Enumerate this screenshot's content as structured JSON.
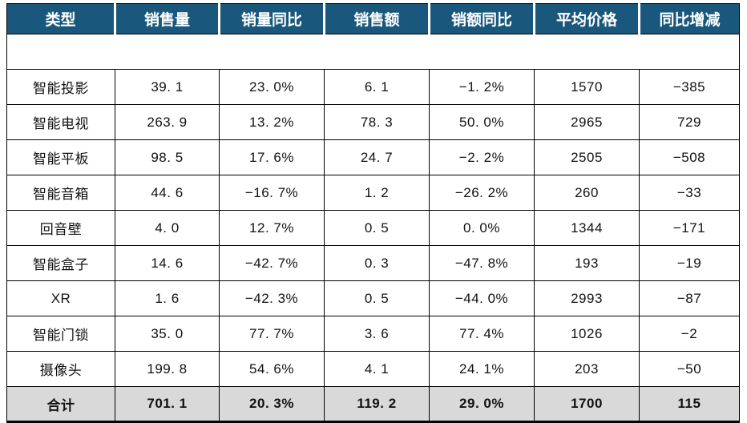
{
  "chart_data": {
    "type": "table",
    "title": "",
    "columns": [
      "类型",
      "销售量",
      "销量同比",
      "销售额",
      "销额同比",
      "平均价格",
      "同比增减"
    ],
    "rows": [
      [
        "智能投影",
        39.1,
        "23.0%",
        6.1,
        "-1.2%",
        1570,
        -385
      ],
      [
        "智能电视",
        263.9,
        "13.2%",
        78.3,
        "50.0%",
        2965,
        729
      ],
      [
        "智能平板",
        98.5,
        "17.6%",
        24.7,
        "-2.2%",
        2505,
        -508
      ],
      [
        "智能音箱",
        44.6,
        "-16.7%",
        1.2,
        "-26.2%",
        260,
        -33
      ],
      [
        "回音壁",
        4.0,
        "12.7%",
        0.5,
        "0.0%",
        1344,
        -171
      ],
      [
        "智能盒子",
        14.6,
        "-42.7%",
        0.3,
        "-47.8%",
        193,
        -19
      ],
      [
        "XR",
        1.6,
        "-42.3%",
        0.5,
        "-44.0%",
        2993,
        -87
      ],
      [
        "智能门锁",
        35.0,
        "77.7%",
        3.6,
        "77.4%",
        1026,
        -2
      ],
      [
        "摄像头",
        199.8,
        "54.6%",
        4.1,
        "24.1%",
        203,
        -50
      ],
      [
        "合计",
        701.1,
        "20.3%",
        119.2,
        "29.0%",
        1700,
        115
      ]
    ],
    "legend": "positive values shown in red, negative values shown in green"
  },
  "table": {
    "columns": [
      {
        "label": "类型"
      },
      {
        "label": "销售量"
      },
      {
        "label": "销量同比"
      },
      {
        "label": "销售额"
      },
      {
        "label": "销额同比"
      },
      {
        "label": "平均价格"
      },
      {
        "label": "同比增减"
      }
    ],
    "colors": {
      "header_bg": "#19587C",
      "header_text": "#FFFFFF",
      "positive": "#F91414",
      "negative": "#0ABF71",
      "total_bg": "#D9D9D9",
      "border": "#000000"
    },
    "rows": [
      {
        "total": false,
        "cells": [
          {
            "text": "智能投影",
            "color": "black"
          },
          {
            "text": "39. 1",
            "color": "black"
          },
          {
            "text": "23. 0%",
            "color": "red"
          },
          {
            "text": "6. 1",
            "color": "black"
          },
          {
            "text": "−1. 2%",
            "color": "green"
          },
          {
            "text": "1570",
            "color": "black"
          },
          {
            "text": "−385",
            "color": "green"
          }
        ]
      },
      {
        "total": false,
        "cells": [
          {
            "text": "智能电视",
            "color": "black"
          },
          {
            "text": "263. 9",
            "color": "black"
          },
          {
            "text": "13. 2%",
            "color": "red"
          },
          {
            "text": "78. 3",
            "color": "black"
          },
          {
            "text": "50. 0%",
            "color": "red"
          },
          {
            "text": "2965",
            "color": "black"
          },
          {
            "text": "729",
            "color": "red"
          }
        ]
      },
      {
        "total": false,
        "cells": [
          {
            "text": "智能平板",
            "color": "black"
          },
          {
            "text": "98. 5",
            "color": "black"
          },
          {
            "text": "17. 6%",
            "color": "red"
          },
          {
            "text": "24. 7",
            "color": "black"
          },
          {
            "text": "−2. 2%",
            "color": "green"
          },
          {
            "text": "2505",
            "color": "black"
          },
          {
            "text": "−508",
            "color": "green"
          }
        ]
      },
      {
        "total": false,
        "cells": [
          {
            "text": "智能音箱",
            "color": "black"
          },
          {
            "text": "44. 6",
            "color": "black"
          },
          {
            "text": "−16. 7%",
            "color": "green"
          },
          {
            "text": "1. 2",
            "color": "black"
          },
          {
            "text": "−26. 2%",
            "color": "green"
          },
          {
            "text": "260",
            "color": "black"
          },
          {
            "text": "−33",
            "color": "green"
          }
        ]
      },
      {
        "total": false,
        "cells": [
          {
            "text": "回音壁",
            "color": "black"
          },
          {
            "text": "4. 0",
            "color": "black"
          },
          {
            "text": "12. 7%",
            "color": "red"
          },
          {
            "text": "0. 5",
            "color": "black"
          },
          {
            "text": "0. 0%",
            "color": "red"
          },
          {
            "text": "1344",
            "color": "black"
          },
          {
            "text": "−171",
            "color": "green"
          }
        ]
      },
      {
        "total": false,
        "cells": [
          {
            "text": "智能盒子",
            "color": "black"
          },
          {
            "text": "14. 6",
            "color": "black"
          },
          {
            "text": "−42. 7%",
            "color": "green"
          },
          {
            "text": "0. 3",
            "color": "black"
          },
          {
            "text": "−47. 8%",
            "color": "green"
          },
          {
            "text": "193",
            "color": "black"
          },
          {
            "text": "−19",
            "color": "green"
          }
        ]
      },
      {
        "total": false,
        "cells": [
          {
            "text": "XR",
            "color": "black"
          },
          {
            "text": "1. 6",
            "color": "black"
          },
          {
            "text": "−42. 3%",
            "color": "green"
          },
          {
            "text": "0. 5",
            "color": "black"
          },
          {
            "text": "−44. 0%",
            "color": "green"
          },
          {
            "text": "2993",
            "color": "black"
          },
          {
            "text": "−87",
            "color": "green"
          }
        ]
      },
      {
        "total": false,
        "cells": [
          {
            "text": "智能门锁",
            "color": "black"
          },
          {
            "text": "35. 0",
            "color": "black"
          },
          {
            "text": "77. 7%",
            "color": "red"
          },
          {
            "text": "3. 6",
            "color": "black"
          },
          {
            "text": "77. 4%",
            "color": "red"
          },
          {
            "text": "1026",
            "color": "black"
          },
          {
            "text": "−2",
            "color": "green"
          }
        ]
      },
      {
        "total": false,
        "cells": [
          {
            "text": "摄像头",
            "color": "black"
          },
          {
            "text": "199. 8",
            "color": "black"
          },
          {
            "text": "54. 6%",
            "color": "red"
          },
          {
            "text": "4. 1",
            "color": "black"
          },
          {
            "text": "24. 1%",
            "color": "red"
          },
          {
            "text": "203",
            "color": "black"
          },
          {
            "text": "−50",
            "color": "green"
          }
        ]
      },
      {
        "total": true,
        "cells": [
          {
            "text": "合计",
            "color": "black"
          },
          {
            "text": "701. 1",
            "color": "black"
          },
          {
            "text": "20. 3%",
            "color": "red"
          },
          {
            "text": "119. 2",
            "color": "black"
          },
          {
            "text": "29. 0%",
            "color": "red"
          },
          {
            "text": "1700",
            "color": "black"
          },
          {
            "text": "115",
            "color": "red"
          }
        ]
      }
    ]
  }
}
